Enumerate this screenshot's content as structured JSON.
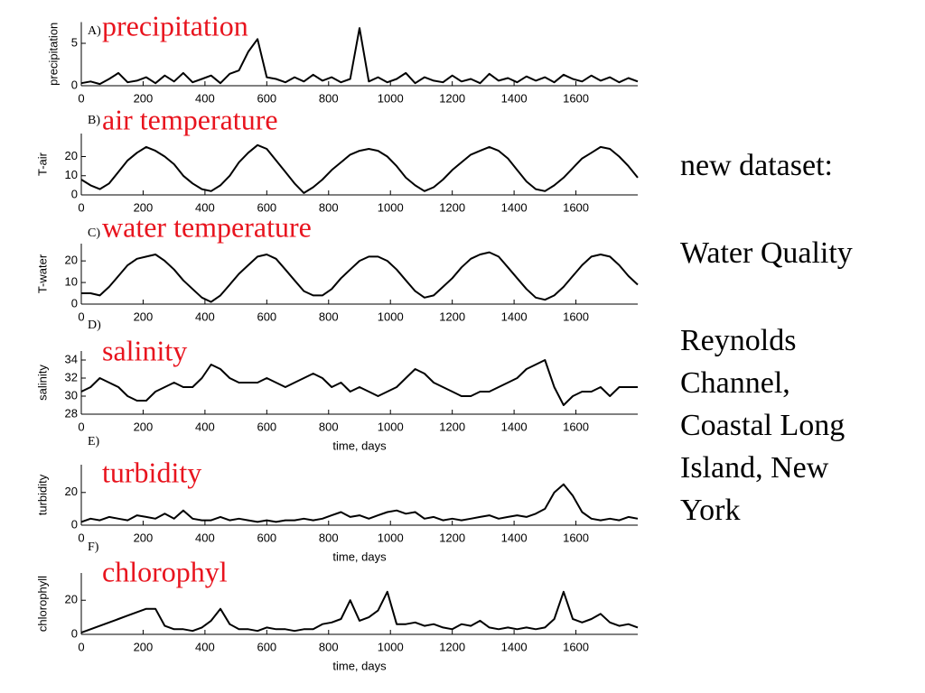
{
  "chart_data": [
    {
      "type": "line",
      "panel": "A)",
      "title": "precipitation",
      "ylabel": "precipitation",
      "x": [
        0,
        30,
        60,
        90,
        120,
        150,
        180,
        210,
        240,
        270,
        300,
        330,
        360,
        390,
        420,
        450,
        480,
        510,
        540,
        570,
        600,
        630,
        660,
        690,
        720,
        750,
        780,
        810,
        840,
        870,
        900,
        930,
        960,
        990,
        1020,
        1050,
        1080,
        1110,
        1140,
        1170,
        1200,
        1230,
        1260,
        1290,
        1320,
        1350,
        1380,
        1410,
        1440,
        1470,
        1500,
        1530,
        1560,
        1590,
        1620,
        1650,
        1680,
        1710,
        1740,
        1770,
        1800
      ],
      "values": [
        0.3,
        0.5,
        0.2,
        0.8,
        1.5,
        0.4,
        0.6,
        1,
        0.3,
        1.2,
        0.5,
        1.5,
        0.4,
        0.8,
        1.2,
        0.3,
        1.4,
        1.8,
        4,
        5.5,
        1,
        0.8,
        0.4,
        1,
        0.5,
        1.3,
        0.6,
        1,
        0.4,
        0.8,
        6.8,
        0.5,
        1,
        0.4,
        0.8,
        1.5,
        0.3,
        1,
        0.6,
        0.4,
        1.2,
        0.5,
        0.8,
        0.3,
        1.4,
        0.6,
        0.9,
        0.4,
        1.1,
        0.6,
        1,
        0.4,
        1.3,
        0.8,
        0.5,
        1.2,
        0.6,
        1,
        0.4,
        0.9,
        0.5
      ],
      "color": "#000000",
      "xlim": [
        0,
        1800
      ],
      "xticks": [
        0,
        200,
        400,
        600,
        800,
        1000,
        1200,
        1400,
        1600
      ],
      "ylim": [
        0,
        7.5
      ],
      "yticks": [
        0,
        5
      ]
    },
    {
      "type": "line",
      "panel": "B)",
      "title": "air temperature",
      "ylabel": "T-air",
      "x": [
        0,
        30,
        60,
        90,
        120,
        150,
        180,
        210,
        240,
        270,
        300,
        330,
        360,
        390,
        420,
        450,
        480,
        510,
        540,
        570,
        600,
        630,
        660,
        690,
        720,
        750,
        780,
        810,
        840,
        870,
        900,
        930,
        960,
        990,
        1020,
        1050,
        1080,
        1110,
        1140,
        1170,
        1200,
        1230,
        1260,
        1290,
        1320,
        1350,
        1380,
        1410,
        1440,
        1470,
        1500,
        1530,
        1560,
        1590,
        1620,
        1650,
        1680,
        1710,
        1740,
        1770,
        1800
      ],
      "values": [
        8,
        5,
        3,
        6,
        12,
        18,
        22,
        25,
        23,
        20,
        16,
        10,
        6,
        3,
        2,
        5,
        10,
        17,
        22,
        26,
        24,
        18,
        12,
        6,
        1,
        4,
        8,
        13,
        17,
        21,
        23,
        24,
        23,
        20,
        15,
        9,
        5,
        2,
        4,
        8,
        13,
        17,
        21,
        23,
        25,
        23,
        19,
        13,
        7,
        3,
        2,
        5,
        9,
        14,
        19,
        22,
        25,
        24,
        20,
        15,
        9
      ],
      "color": "#000000",
      "xlim": [
        0,
        1800
      ],
      "xticks": [
        0,
        200,
        400,
        600,
        800,
        1000,
        1200,
        1400,
        1600
      ],
      "ylim": [
        0,
        32
      ],
      "yticks": [
        0,
        10,
        20
      ]
    },
    {
      "type": "line",
      "panel": "C)",
      "title": "water temperature",
      "ylabel": "T-water",
      "x": [
        0,
        30,
        60,
        90,
        120,
        150,
        180,
        210,
        240,
        270,
        300,
        330,
        360,
        390,
        420,
        450,
        480,
        510,
        540,
        570,
        600,
        630,
        660,
        690,
        720,
        750,
        780,
        810,
        840,
        870,
        900,
        930,
        960,
        990,
        1020,
        1050,
        1080,
        1110,
        1140,
        1170,
        1200,
        1230,
        1260,
        1290,
        1320,
        1350,
        1380,
        1410,
        1440,
        1470,
        1500,
        1530,
        1560,
        1590,
        1620,
        1650,
        1680,
        1710,
        1740,
        1770,
        1800
      ],
      "values": [
        5,
        5,
        4,
        8,
        13,
        18,
        21,
        22,
        23,
        20,
        16,
        11,
        7,
        3,
        1,
        4,
        9,
        14,
        18,
        22,
        23,
        21,
        16,
        11,
        6,
        4,
        4,
        7,
        12,
        16,
        20,
        22,
        22,
        20,
        16,
        11,
        6,
        3,
        4,
        8,
        12,
        17,
        21,
        23,
        24,
        22,
        17,
        12,
        7,
        3,
        2,
        4,
        8,
        13,
        18,
        22,
        23,
        22,
        18,
        13,
        9
      ],
      "color": "#000000",
      "xlim": [
        0,
        1800
      ],
      "xticks": [
        0,
        200,
        400,
        600,
        800,
        1000,
        1200,
        1400,
        1600
      ],
      "ylim": [
        0,
        28
      ],
      "yticks": [
        0,
        10,
        20
      ]
    },
    {
      "type": "line",
      "panel": "D)",
      "title": "salinity",
      "ylabel": "salinity",
      "xlabel": "time, days",
      "x": [
        0,
        30,
        60,
        90,
        120,
        150,
        180,
        210,
        240,
        270,
        300,
        330,
        360,
        390,
        420,
        450,
        480,
        510,
        540,
        570,
        600,
        630,
        660,
        690,
        720,
        750,
        780,
        810,
        840,
        870,
        900,
        930,
        960,
        990,
        1020,
        1050,
        1080,
        1110,
        1140,
        1170,
        1200,
        1230,
        1260,
        1290,
        1320,
        1350,
        1380,
        1410,
        1440,
        1470,
        1500,
        1530,
        1560,
        1590,
        1620,
        1650,
        1680,
        1710,
        1740,
        1770,
        1800
      ],
      "values": [
        30.5,
        31,
        32,
        31.5,
        31,
        30,
        29.5,
        29.5,
        30.5,
        31,
        31.5,
        31,
        31,
        32,
        33.5,
        33,
        32,
        31.5,
        31.5,
        31.5,
        32,
        31.5,
        31,
        31.5,
        32,
        32.5,
        32,
        31,
        31.5,
        30.5,
        31,
        30.5,
        30,
        30.5,
        31,
        32,
        33,
        32.5,
        31.5,
        31,
        30.5,
        30,
        30,
        30.5,
        30.5,
        31,
        31.5,
        32,
        33,
        33.5,
        34,
        31,
        29,
        30,
        30.5,
        30.5,
        31,
        30,
        31,
        31,
        31
      ],
      "color": "#000000",
      "xlim": [
        0,
        1800
      ],
      "xticks": [
        0,
        200,
        400,
        600,
        800,
        1000,
        1200,
        1400,
        1600
      ],
      "ylim": [
        28,
        35
      ],
      "yticks": [
        28,
        30,
        32,
        34
      ]
    },
    {
      "type": "line",
      "panel": "E)",
      "title": "turbidity",
      "ylabel": "turbidity",
      "xlabel": "time, days",
      "x": [
        0,
        30,
        60,
        90,
        120,
        150,
        180,
        210,
        240,
        270,
        300,
        330,
        360,
        390,
        420,
        450,
        480,
        510,
        540,
        570,
        600,
        630,
        660,
        690,
        720,
        750,
        780,
        810,
        840,
        870,
        900,
        930,
        960,
        990,
        1020,
        1050,
        1080,
        1110,
        1140,
        1170,
        1200,
        1230,
        1260,
        1290,
        1320,
        1350,
        1380,
        1410,
        1440,
        1470,
        1500,
        1530,
        1560,
        1590,
        1620,
        1650,
        1680,
        1710,
        1740,
        1770,
        1800
      ],
      "values": [
        2,
        4,
        3,
        5,
        4,
        3,
        6,
        5,
        4,
        7,
        4,
        9,
        4,
        3,
        3,
        5,
        3,
        4,
        3,
        2,
        3,
        2,
        3,
        3,
        4,
        3,
        4,
        6,
        8,
        5,
        6,
        4,
        6,
        8,
        9,
        7,
        8,
        4,
        5,
        3,
        4,
        3,
        4,
        5,
        6,
        4,
        5,
        6,
        5,
        7,
        10,
        20,
        25,
        18,
        8,
        4,
        3,
        4,
        3,
        5,
        4
      ],
      "color": "#000000",
      "xlim": [
        0,
        1800
      ],
      "xticks": [
        0,
        200,
        400,
        600,
        800,
        1000,
        1200,
        1400,
        1600
      ],
      "ylim": [
        0,
        37
      ],
      "yticks": [
        0,
        20
      ]
    },
    {
      "type": "line",
      "panel": "F)",
      "title": "chlorophyl",
      "ylabel": "chlorophyll",
      "xlabel": "time, days",
      "x": [
        0,
        30,
        60,
        90,
        120,
        150,
        180,
        210,
        240,
        270,
        300,
        330,
        360,
        390,
        420,
        450,
        480,
        510,
        540,
        570,
        600,
        630,
        660,
        690,
        720,
        750,
        780,
        810,
        840,
        870,
        900,
        930,
        960,
        990,
        1020,
        1050,
        1080,
        1110,
        1140,
        1170,
        1200,
        1230,
        1260,
        1290,
        1320,
        1350,
        1380,
        1410,
        1440,
        1470,
        1500,
        1530,
        1560,
        1590,
        1620,
        1650,
        1680,
        1710,
        1740,
        1770,
        1800
      ],
      "values": [
        1,
        3,
        5,
        7,
        9,
        11,
        13,
        15,
        15,
        5,
        3,
        3,
        2,
        4,
        8,
        15,
        6,
        3,
        3,
        2,
        4,
        3,
        3,
        2,
        3,
        3,
        6,
        7,
        9,
        20,
        8,
        10,
        14,
        25,
        6,
        6,
        7,
        5,
        6,
        4,
        3,
        6,
        5,
        8,
        4,
        3,
        4,
        3,
        4,
        3,
        4,
        9,
        25,
        9,
        7,
        9,
        12,
        7,
        5,
        6,
        4
      ],
      "color": "#000000",
      "xlim": [
        0,
        1800
      ],
      "xticks": [
        0,
        200,
        400,
        600,
        800,
        1000,
        1200,
        1400,
        1600
      ],
      "ylim": [
        0,
        36
      ],
      "yticks": [
        0,
        20
      ]
    }
  ],
  "side_text": [
    "new dataset:",
    "Water Quality",
    "Reynolds Channel, Coastal Long Island, New York"
  ]
}
